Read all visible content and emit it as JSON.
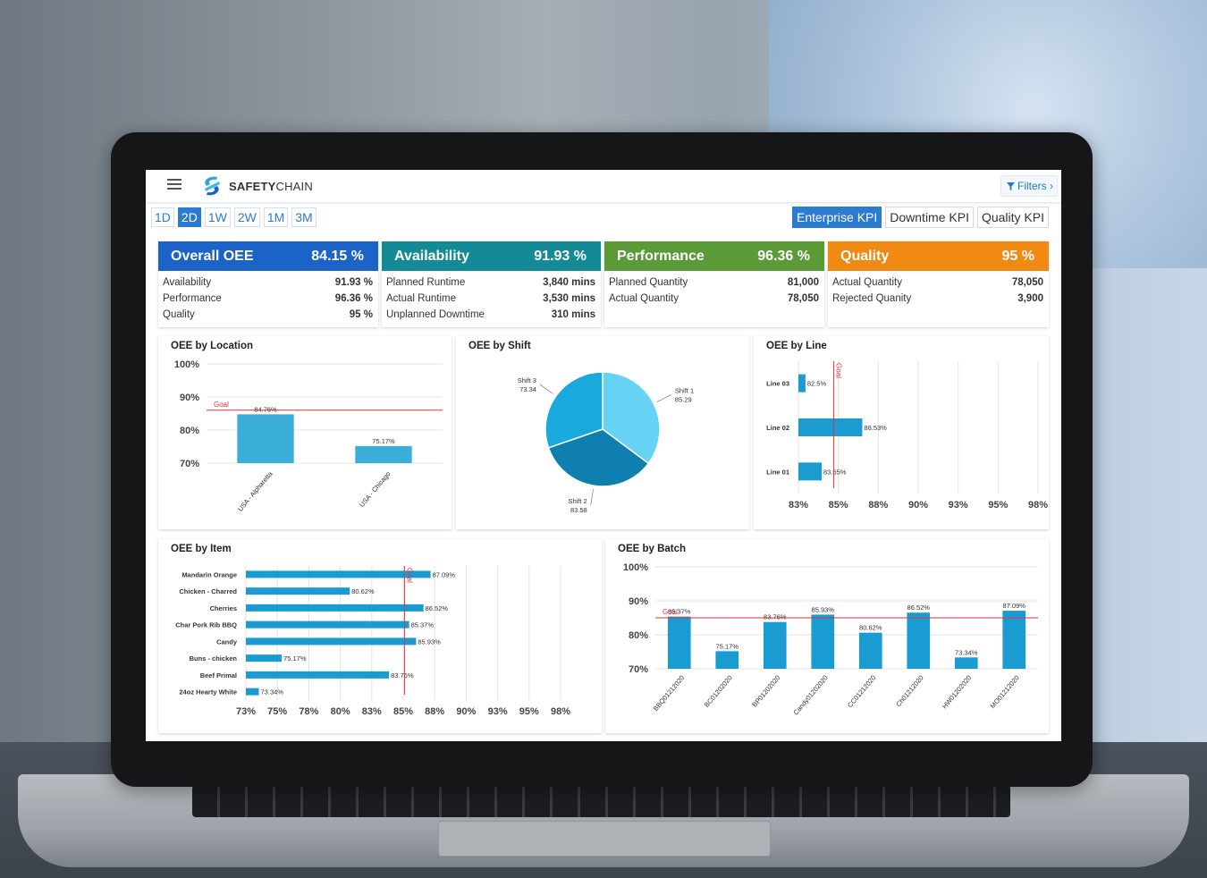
{
  "app": {
    "logo_bold": "SAFETY",
    "logo_regular": "CHAIN",
    "filters_label": "Filters"
  },
  "colors": {
    "primary": "#2b7bd0",
    "goal": "#d9363e",
    "bar": "#1a9bd1",
    "oee": "#1b63c7",
    "availability": "#148a96",
    "performance": "#5a9b38",
    "quality": "#f08a12"
  },
  "range_tabs": [
    {
      "label": "1D",
      "active": false
    },
    {
      "label": "2D",
      "active": true
    },
    {
      "label": "1W",
      "active": false
    },
    {
      "label": "2W",
      "active": false
    },
    {
      "label": "1M",
      "active": false
    },
    {
      "label": "3M",
      "active": false
    }
  ],
  "kpi_tabs": [
    {
      "label": "Enterprise KPI",
      "active": true
    },
    {
      "label": "Downtime KPI",
      "active": false
    },
    {
      "label": "Quality KPI",
      "active": false
    }
  ],
  "kpi_cards": [
    {
      "title": "Overall OEE",
      "value": "84.15 %",
      "rows": [
        {
          "label": "Availability",
          "value": "91.93 %"
        },
        {
          "label": "Performance",
          "value": "96.36 %"
        },
        {
          "label": "Quality",
          "value": "95 %"
        }
      ]
    },
    {
      "title": "Availability",
      "value": "91.93 %",
      "rows": [
        {
          "label": "Planned Runtime",
          "value": "3,840 mins"
        },
        {
          "label": "Actual Runtime",
          "value": "3,530 mins"
        },
        {
          "label": "Unplanned Downtime",
          "value": "310 mins"
        }
      ]
    },
    {
      "title": "Performance",
      "value": "96.36 %",
      "rows": [
        {
          "label": "Planned Quantity",
          "value": "81,000"
        },
        {
          "label": "Actual Quantity",
          "value": "78,050"
        }
      ]
    },
    {
      "title": "Quality",
      "value": "95 %",
      "rows": [
        {
          "label": "Actual Quantity",
          "value": "78,050"
        },
        {
          "label": "Rejected Quanity",
          "value": "3,900"
        }
      ]
    }
  ],
  "chart_data": [
    {
      "id": "location",
      "type": "bar",
      "title": "OEE by Location",
      "categories": [
        "USA - Alpharetta",
        "USA - Chicago"
      ],
      "values": [
        84.76,
        75.17
      ],
      "value_labels": [
        "84.76%",
        "75.17%"
      ],
      "y_ticks": [
        "100%",
        "90%",
        "80%",
        "70%"
      ],
      "ylim": [
        70,
        100
      ],
      "goal": 86,
      "goal_label": "Goal"
    },
    {
      "id": "shift",
      "type": "pie",
      "title": "OEE by Shift",
      "slices": [
        {
          "name": "Shift 1",
          "value": 85.29,
          "label": "85.29"
        },
        {
          "name": "Shift 2",
          "value": 83.58,
          "label": "83.58"
        },
        {
          "name": "Shift 3",
          "value": 73.34,
          "label": "73.34"
        }
      ]
    },
    {
      "id": "line",
      "type": "bar",
      "orientation": "horizontal",
      "title": "OEE by Line",
      "categories": [
        "Line 03",
        "Line 02",
        "Line 01"
      ],
      "values": [
        82.5,
        86.53,
        83.65
      ],
      "value_labels": [
        "82.5%",
        "86.53%",
        "83.65%"
      ],
      "x_ticks": [
        "83%",
        "85%",
        "88%",
        "90%",
        "93%",
        "95%",
        "98%"
      ],
      "goal": 84.5,
      "goal_label": "Goal"
    },
    {
      "id": "item",
      "type": "bar",
      "orientation": "horizontal",
      "title": "OEE by Item",
      "categories": [
        "Mandarin Orange",
        "Chicken - Charred",
        "Cherries",
        "Char Pork Rib BBQ",
        "Candy",
        "Buns - chicken",
        "Beef Primal",
        "24oz Hearty White"
      ],
      "values": [
        87.09,
        80.62,
        86.52,
        85.37,
        85.93,
        75.17,
        83.76,
        73.34
      ],
      "value_labels": [
        "87.09%",
        "80.62%",
        "86.52%",
        "85.37%",
        "85.93%",
        "75.17%",
        "83.76%",
        "73.34%"
      ],
      "x_ticks": [
        "73%",
        "75%",
        "78%",
        "80%",
        "83%",
        "85%",
        "88%",
        "90%",
        "93%",
        "95%",
        "98%"
      ],
      "goal": 85,
      "goal_label": "Goal"
    },
    {
      "id": "batch",
      "type": "bar",
      "title": "OEE by Batch",
      "categories": [
        "BBQ01212020",
        "BC01202020",
        "BP01202020",
        "Candy01202020",
        "CC01212020",
        "Ch01212020",
        "HW01202020",
        "MO01212020"
      ],
      "values": [
        85.37,
        75.17,
        83.76,
        85.93,
        80.62,
        86.52,
        73.34,
        87.09
      ],
      "value_labels": [
        "85.37%",
        "75.17%",
        "83.76%",
        "85.93%",
        "80.62%",
        "86.52%",
        "73.34%",
        "87.09%"
      ],
      "y_ticks": [
        "100%",
        "90%",
        "80%",
        "70%"
      ],
      "ylim": [
        70,
        100
      ],
      "goal": 85,
      "goal_label": "Goal"
    }
  ]
}
